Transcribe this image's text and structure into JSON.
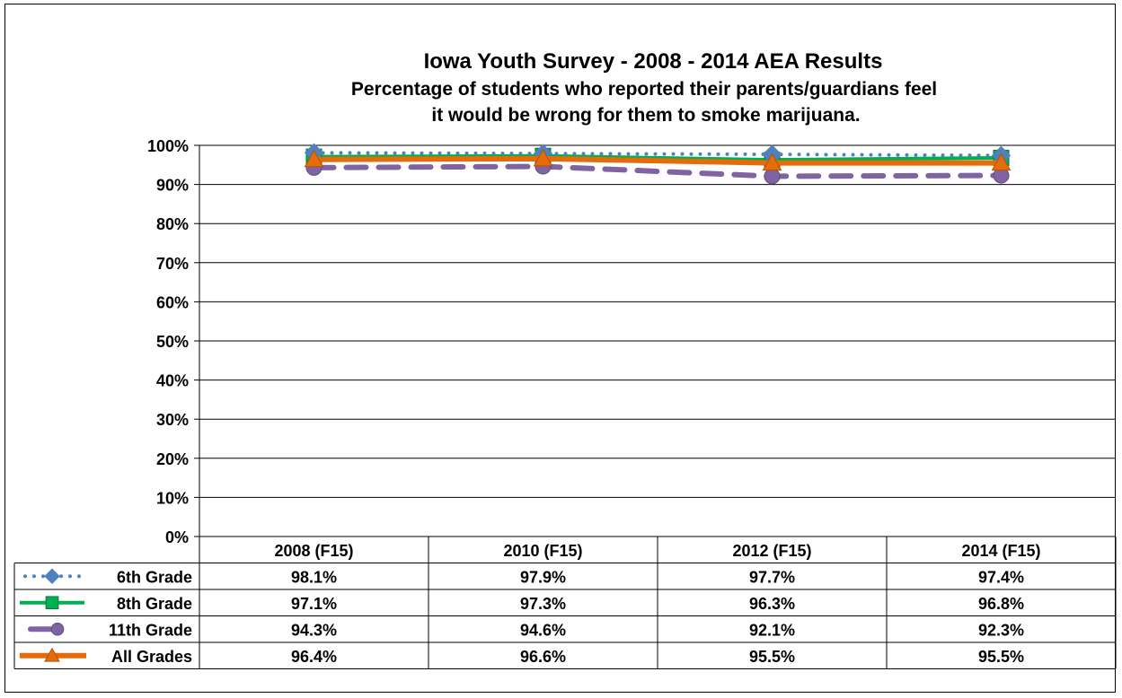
{
  "chart_data": {
    "type": "line",
    "title": "Iowa Youth Survey - 2008 - 2014 AEA Results",
    "subtitle_lines": [
      "Percentage of students who reported their parents/guardians  feel",
      "it would be wrong for them to smoke marijuana."
    ],
    "categories": [
      "2008 (F15)",
      "2010 (F15)",
      "2012 (F15)",
      "2014 (F15)"
    ],
    "ylim": [
      0,
      100
    ],
    "yticks": [
      0,
      10,
      20,
      30,
      40,
      50,
      60,
      70,
      80,
      90,
      100
    ],
    "ytick_labels": [
      "0%",
      "10%",
      "20%",
      "30%",
      "40%",
      "50%",
      "60%",
      "70%",
      "80%",
      "90%",
      "100%"
    ],
    "grid": true,
    "legend": "data-table",
    "series": [
      {
        "name": "6th Grade",
        "values": [
          98.1,
          97.9,
          97.7,
          97.4
        ],
        "labels": [
          "98.1%",
          "97.9%",
          "97.7%",
          "97.4%"
        ],
        "color": "#4F81BD",
        "marker": "diamond",
        "line": "dotted"
      },
      {
        "name": "8th Grade",
        "values": [
          97.1,
          97.3,
          96.3,
          96.8
        ],
        "labels": [
          "97.1%",
          "97.3%",
          "96.3%",
          "96.8%"
        ],
        "color": "#00B050",
        "marker": "square",
        "line": "solid"
      },
      {
        "name": "11th Grade",
        "values": [
          94.3,
          94.6,
          92.1,
          92.3
        ],
        "labels": [
          "94.3%",
          "94.6%",
          "92.1%",
          "92.3%"
        ],
        "color": "#8064A2",
        "marker": "circle",
        "line": "dashed"
      },
      {
        "name": "All Grades",
        "values": [
          96.4,
          96.6,
          95.5,
          95.5
        ],
        "labels": [
          "96.4%",
          "96.6%",
          "95.5%",
          "95.5%"
        ],
        "color": "#E46C0A",
        "marker": "triangle",
        "line": "solid"
      }
    ]
  }
}
